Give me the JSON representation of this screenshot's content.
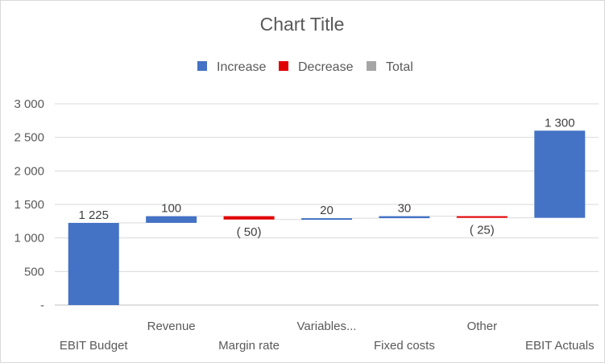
{
  "chart_data": {
    "type": "bar",
    "subtype": "waterfall",
    "title": "Chart Title",
    "legend": {
      "position": "top",
      "entries": [
        {
          "name": "Increase",
          "color": "#4472c4"
        },
        {
          "name": "Decrease",
          "color": "#e00000"
        },
        {
          "name": "Total",
          "color": "#a5a5a5"
        }
      ]
    },
    "ylim": [
      0,
      3000
    ],
    "y_ticks": [
      {
        "value": 0,
        "label": "-"
      },
      {
        "value": 500,
        "label": "500"
      },
      {
        "value": 1000,
        "label": "1 000"
      },
      {
        "value": 1500,
        "label": "1 500"
      },
      {
        "value": 2000,
        "label": "2 000"
      },
      {
        "value": 2500,
        "label": "2 500"
      },
      {
        "value": 3000,
        "label": "3 000"
      }
    ],
    "grid": true,
    "categories": [
      "EBIT Budget",
      "Revenue",
      "Margin rate",
      "Variables...",
      "Fixed costs",
      "Other",
      "EBIT Actuals"
    ],
    "bars": [
      {
        "category": "EBIT Budget",
        "start": 0,
        "end": 1225,
        "kind": "Increase",
        "label": "1 225"
      },
      {
        "category": "Revenue",
        "start": 1225,
        "end": 1325,
        "kind": "Increase",
        "label": "100"
      },
      {
        "category": "Margin rate",
        "start": 1325,
        "end": 1275,
        "kind": "Decrease",
        "label": "( 50)"
      },
      {
        "category": "Variables...",
        "start": 1275,
        "end": 1295,
        "kind": "Increase",
        "label": "20"
      },
      {
        "category": "Fixed costs",
        "start": 1295,
        "end": 1325,
        "kind": "Increase",
        "label": "30"
      },
      {
        "category": "Other",
        "start": 1325,
        "end": 1300,
        "kind": "Decrease",
        "label": "( 25)"
      },
      {
        "category": "EBIT Actuals",
        "start": 1300,
        "end": 2600,
        "kind": "Increase",
        "label": "1 300"
      }
    ]
  }
}
